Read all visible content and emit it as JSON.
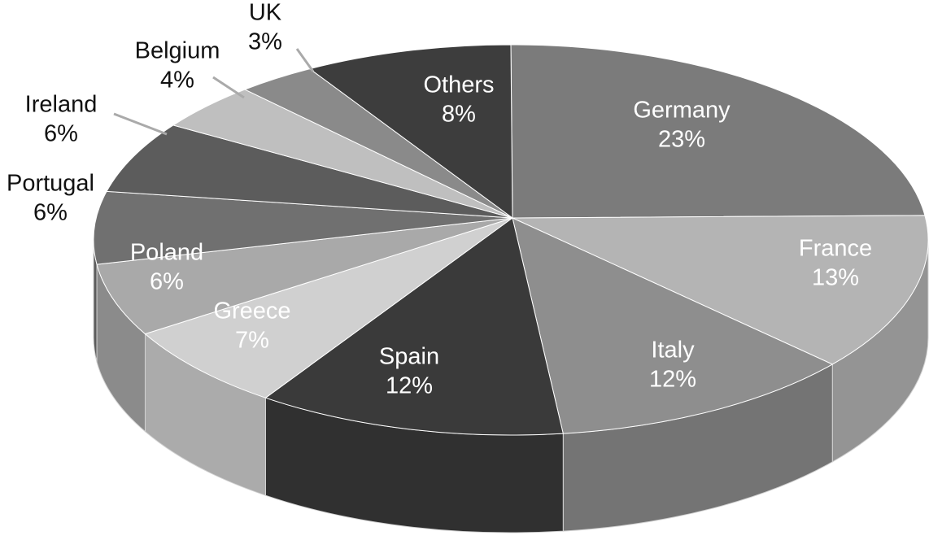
{
  "chart_data": {
    "type": "pie",
    "categories": [
      "Germany",
      "France",
      "Italy",
      "Spain",
      "Greece",
      "Poland",
      "Portugal",
      "Ireland",
      "Belgium",
      "UK",
      "Others"
    ],
    "values": [
      23,
      13,
      12,
      12,
      7,
      6,
      6,
      6,
      4,
      3,
      8
    ],
    "value_labels": [
      "23%",
      "13%",
      "12%",
      "12%",
      "7%",
      "6%",
      "6%",
      "6%",
      "4%",
      "3%",
      "8%"
    ],
    "colors": [
      "#7b7b7b",
      "#b4b4b4",
      "#8e8e8e",
      "#3a3a3a",
      "#d0d0d0",
      "#a9a9a9",
      "#707070",
      "#5c5c5c",
      "#bfbfbf",
      "#8a8a8a",
      "#3d3d3d"
    ]
  }
}
